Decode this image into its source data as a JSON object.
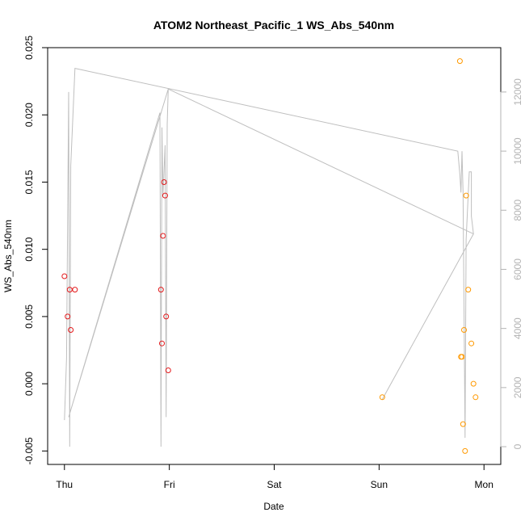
{
  "chart_data": {
    "type": "scatter",
    "title": "ATOM2 Northeast_Pacific_1 WS_Abs_540nm",
    "xlabel": "Date",
    "ylabel": "WS_Abs_540nm",
    "x_ticks": [
      {
        "day": 0,
        "label": "Thu"
      },
      {
        "day": 1,
        "label": "Fri"
      },
      {
        "day": 2,
        "label": "Sat"
      },
      {
        "day": 3,
        "label": "Sun"
      },
      {
        "day": 4,
        "label": "Mon"
      }
    ],
    "xlim": [
      -0.16,
      4.16
    ],
    "ylim": [
      -0.006,
      0.025
    ],
    "y_ticks": [
      {
        "v": -0.005,
        "label": "-0.005"
      },
      {
        "v": 0,
        "label": "0.000"
      },
      {
        "v": 0.005,
        "label": "0.005"
      },
      {
        "v": 0.01,
        "label": "0.010"
      },
      {
        "v": 0.015,
        "label": "0.015"
      },
      {
        "v": 0.02,
        "label": "0.020"
      },
      {
        "v": 0.025,
        "label": "0.025"
      }
    ],
    "y2lim": [
      -600,
      13500
    ],
    "y2_ticks": [
      {
        "v": 0,
        "label": "0"
      },
      {
        "v": 2000,
        "label": "2000"
      },
      {
        "v": 4000,
        "label": "4000"
      },
      {
        "v": 6000,
        "label": "6000"
      },
      {
        "v": 8000,
        "label": "8000"
      },
      {
        "v": 10000,
        "label": "10000"
      },
      {
        "v": 12000,
        "label": "12000"
      }
    ],
    "series": [
      {
        "color": "#e41a1c",
        "points": [
          [
            0.0,
            0.008
          ],
          [
            0.03,
            0.005
          ],
          [
            0.05,
            0.007
          ],
          [
            0.06,
            0.004
          ],
          [
            0.1,
            0.007
          ],
          [
            0.92,
            0.007
          ],
          [
            0.93,
            0.003
          ],
          [
            0.94,
            0.011
          ],
          [
            0.95,
            0.015
          ],
          [
            0.96,
            0.014
          ],
          [
            0.97,
            0.005
          ],
          [
            0.99,
            0.001
          ]
        ]
      },
      {
        "color": "#ff9900",
        "points": [
          [
            3.03,
            -0.001
          ],
          [
            3.77,
            0.024
          ],
          [
            3.78,
            0.002
          ],
          [
            3.79,
            0.002
          ],
          [
            3.8,
            -0.003
          ],
          [
            3.81,
            0.004
          ],
          [
            3.82,
            -0.005
          ],
          [
            3.83,
            0.014
          ],
          [
            3.85,
            0.007
          ],
          [
            3.88,
            0.003
          ],
          [
            3.9,
            0.0
          ],
          [
            3.92,
            -0.001
          ]
        ]
      }
    ],
    "secondary_line": {
      "color": "#bfbfbf",
      "points": [
        [
          0.0,
          900
        ],
        [
          0.02,
          3000
        ],
        [
          0.04,
          12000
        ],
        [
          0.05,
          0
        ],
        [
          0.06,
          9500
        ],
        [
          0.1,
          12800
        ],
        [
          3.75,
          10000
        ],
        [
          3.77,
          9200
        ],
        [
          3.78,
          8600
        ],
        [
          3.79,
          10000
        ],
        [
          3.8,
          8600
        ],
        [
          3.82,
          300
        ],
        [
          3.83,
          7000
        ],
        [
          3.86,
          9300
        ],
        [
          3.88,
          9300
        ],
        [
          3.88,
          7800
        ],
        [
          3.9,
          7200
        ],
        [
          3.03,
          1600
        ],
        [
          3.9,
          7200
        ],
        [
          0.99,
          12100
        ],
        [
          0.04,
          1000
        ],
        [
          0.91,
          11300
        ],
        [
          0.92,
          0
        ],
        [
          0.93,
          10800
        ],
        [
          0.94,
          8500
        ],
        [
          0.96,
          10200
        ],
        [
          0.97,
          1000
        ],
        [
          0.98,
          10900
        ],
        [
          0.99,
          12100
        ]
      ]
    }
  }
}
